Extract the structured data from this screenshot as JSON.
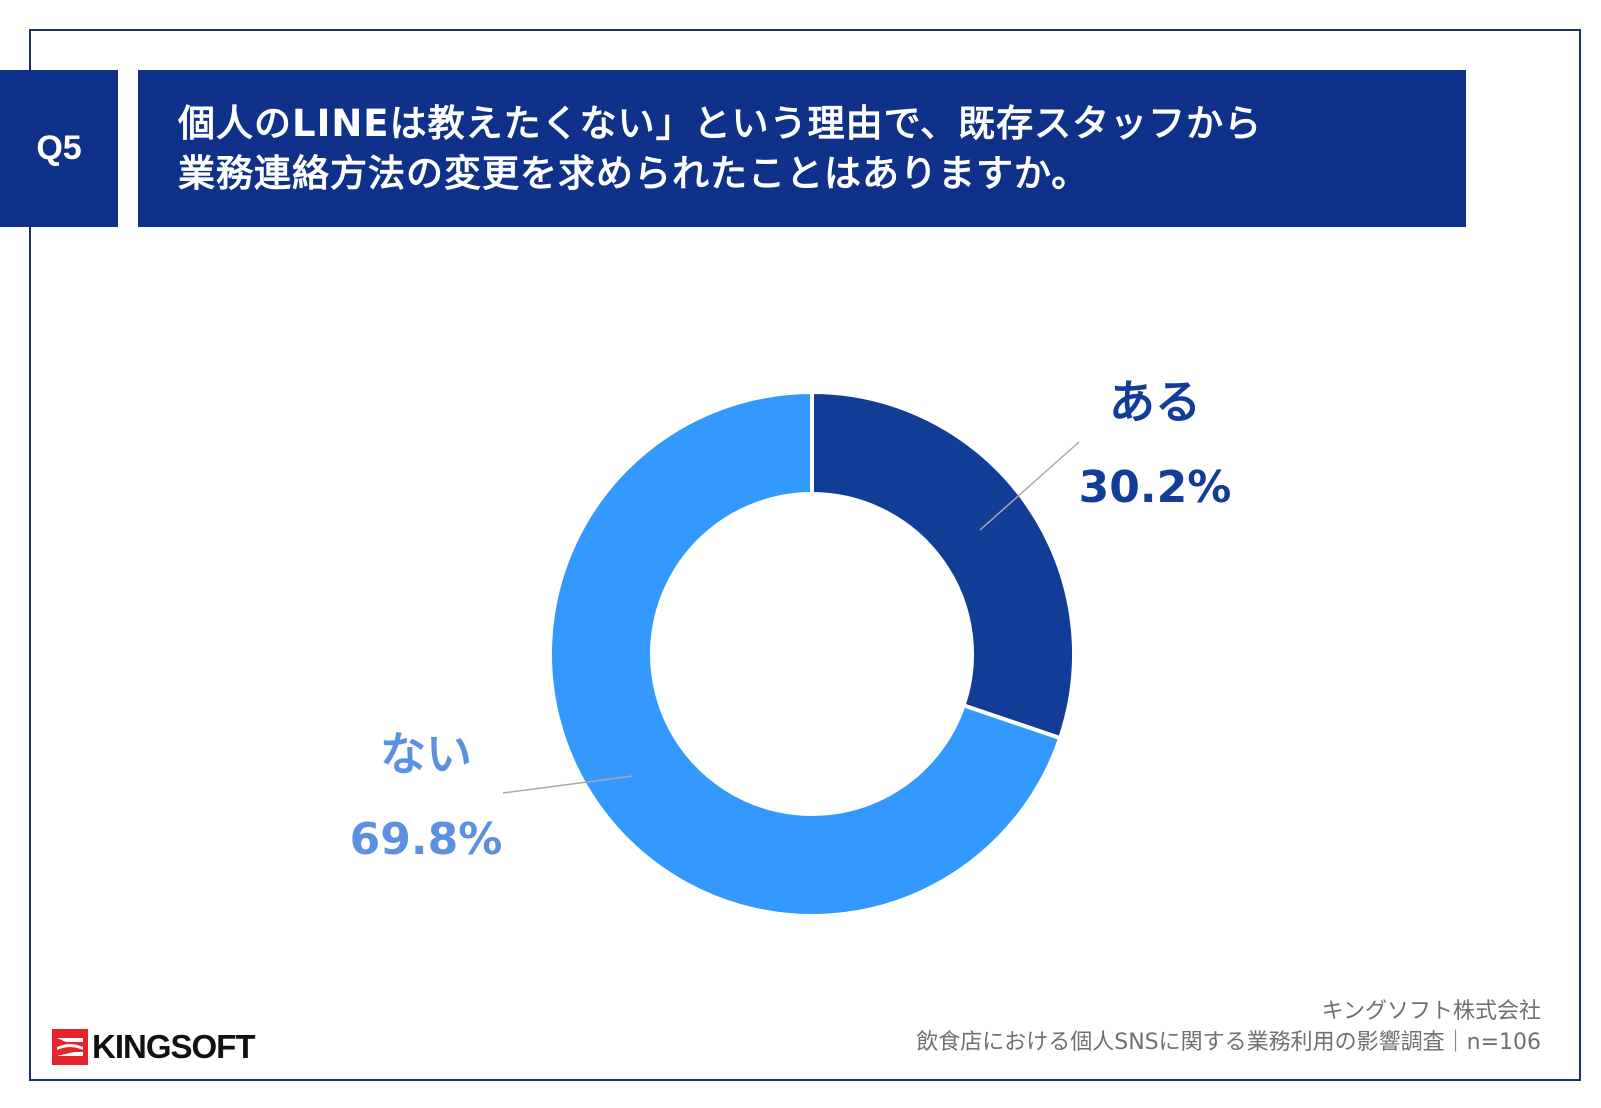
{
  "header": {
    "badge": "Q5",
    "title_line1": "個人のLINEは教えたくない」という理由で、既存スタッフから",
    "title_line2": "業務連絡方法の変更を求められたことはありますか。",
    "color": "#0f318a"
  },
  "chart_data": {
    "type": "pie",
    "variant": "donut",
    "title": "",
    "categories": [
      "ある",
      "ない"
    ],
    "values": [
      30.2,
      69.8
    ],
    "value_labels": [
      "30.2%",
      "69.8%"
    ],
    "colors": [
      "#123d97",
      "#3399ff"
    ],
    "label_colors": [
      "#123d97",
      "#5b91e0"
    ],
    "legend": "none"
  },
  "footer": {
    "company": "キングソフト株式会社",
    "survey": "飲食店における個人SNSに関する業務利用の影響調査｜n=106",
    "logo_text": "KINGSOFT",
    "logo_icon": "kingsoft-logo-icon",
    "logo_color": "#e5232a"
  }
}
